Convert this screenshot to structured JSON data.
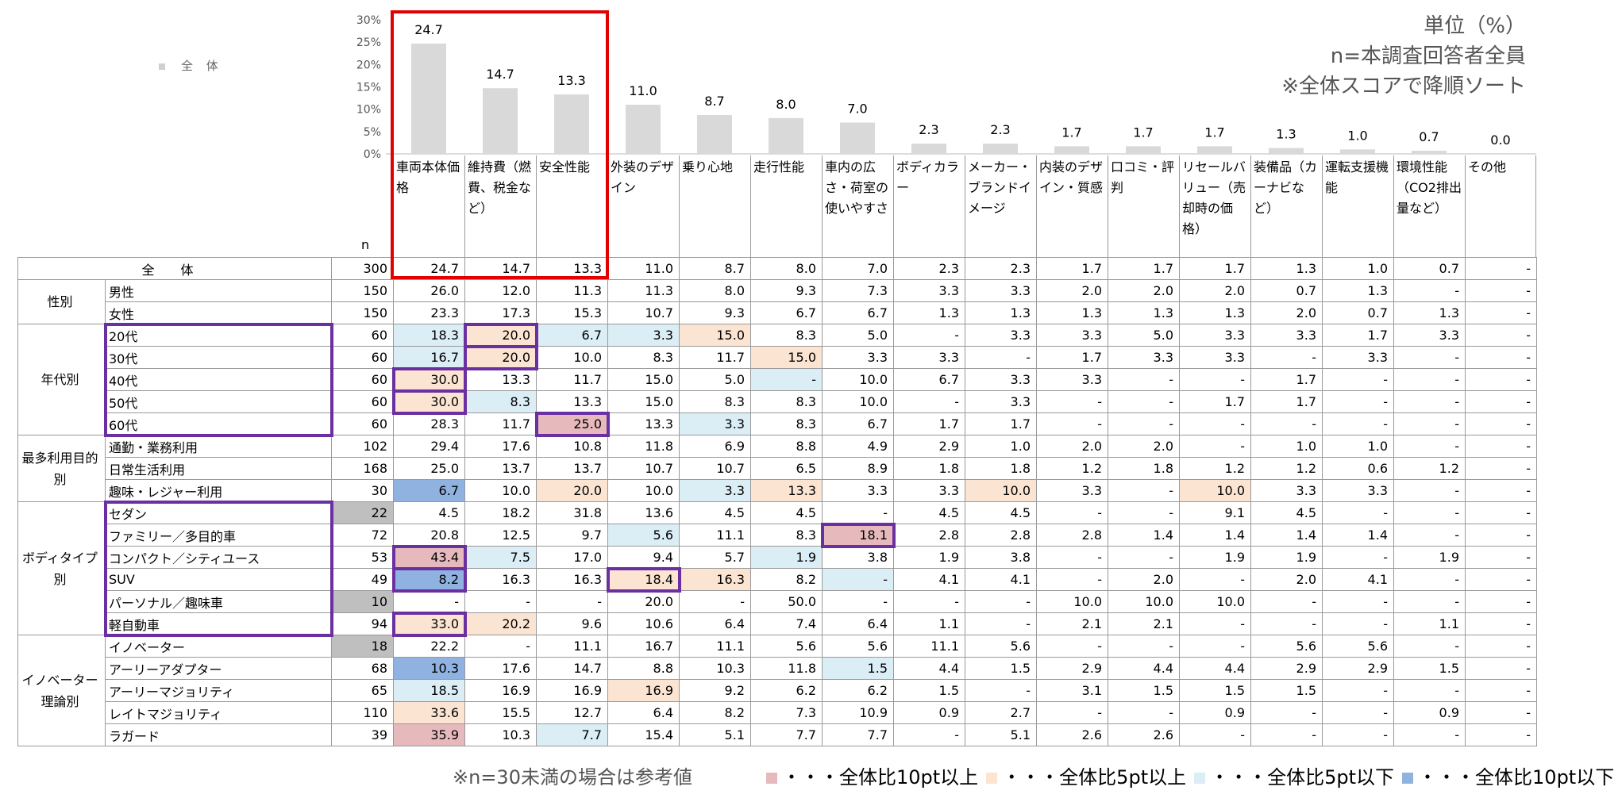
{
  "notes": {
    "unit": "単位（%）",
    "base": "n=本調査回答者全員",
    "sort": "※全体スコアで降順ソート"
  },
  "legend_all": "全 体",
  "n_header": "n",
  "total_label": "全 体",
  "footnote": "※n=30未満の場合は参考値",
  "legend": [
    {
      "label": "・・・全体比10pt以上",
      "color": "#e6b9bd"
    },
    {
      "label": "・・・全体比5pt以上",
      "color": "#fbe4d2"
    },
    {
      "label": "・・・全体比5pt以下",
      "color": "#dbedf5"
    },
    {
      "label": "・・・全体比10pt以下",
      "color": "#8fb2e0"
    }
  ],
  "chart_data": {
    "type": "bar",
    "categories": [
      "車両本体価格",
      "維持費（燃費、税金など）",
      "安全性能",
      "外装のデザイン",
      "乗り心地",
      "走行性能",
      "車内の広さ・荷室の使いやすさ",
      "ボディカラー",
      "メーカー・ブランドイメージ",
      "内装のデザイン・質感",
      "口コミ・評判",
      "リセールバリュー（売却時の価格）",
      "装備品（カーナビなど）",
      "運転支援機能",
      "環境性能（CO2排出量など）",
      "その他"
    ],
    "values": [
      24.7,
      14.7,
      13.3,
      11.0,
      8.7,
      8.0,
      7.0,
      2.3,
      2.3,
      1.7,
      1.7,
      1.7,
      1.3,
      1.0,
      0.7,
      0.0
    ],
    "value_labels": [
      "24.7",
      "14.7",
      "13.3",
      "11.0",
      "8.7",
      "8.0",
      "7.0",
      "2.3",
      "2.3",
      "1.7",
      "1.7",
      "1.7",
      "1.3",
      "1.0",
      "0.7",
      "0.0"
    ],
    "y_ticks": [
      "30%",
      "25%",
      "20%",
      "15%",
      "10%",
      "5%",
      "0%"
    ],
    "ylim": [
      0,
      30
    ],
    "color": "#d9d9d9"
  },
  "table": {
    "total": {
      "n": "300",
      "values": [
        "24.7",
        "14.7",
        "13.3",
        "11.0",
        "8.7",
        "8.0",
        "7.0",
        "2.3",
        "2.3",
        "1.7",
        "1.7",
        "1.7",
        "1.3",
        "1.0",
        "0.7",
        "-"
      ]
    },
    "groups": [
      {
        "label": "性別",
        "rows": [
          {
            "seg": "男性",
            "n": "150",
            "values": [
              "26.0",
              "12.0",
              "11.3",
              "11.3",
              "8.0",
              "9.3",
              "7.3",
              "3.3",
              "3.3",
              "2.0",
              "2.0",
              "2.0",
              "0.7",
              "1.3",
              "-",
              "-"
            ],
            "hl": [
              "",
              "",
              "",
              "",
              "",
              "",
              "",
              "",
              "",
              "",
              "",
              "",
              "",
              "",
              "",
              ""
            ]
          },
          {
            "seg": "女性",
            "n": "150",
            "values": [
              "23.3",
              "17.3",
              "15.3",
              "10.7",
              "9.3",
              "6.7",
              "6.7",
              "1.3",
              "1.3",
              "1.3",
              "1.3",
              "1.3",
              "2.0",
              "0.7",
              "1.3",
              "-"
            ],
            "hl": [
              "",
              "",
              "",
              "",
              "",
              "",
              "",
              "",
              "",
              "",
              "",
              "",
              "",
              "",
              "",
              ""
            ]
          }
        ]
      },
      {
        "label": "年代別",
        "rows": [
          {
            "seg": "20代",
            "n": "60",
            "values": [
              "18.3",
              "20.0",
              "6.7",
              "3.3",
              "15.0",
              "8.3",
              "5.0",
              "-",
              "3.3",
              "3.3",
              "5.0",
              "3.3",
              "3.3",
              "1.7",
              "3.3",
              "-"
            ],
            "hl": [
              "l5",
              "h5",
              "l5",
              "l5",
              "h5",
              "",
              "",
              "",
              "",
              "",
              "",
              "",
              "",
              "",
              "",
              ""
            ]
          },
          {
            "seg": "30代",
            "n": "60",
            "values": [
              "16.7",
              "20.0",
              "10.0",
              "8.3",
              "11.7",
              "15.0",
              "3.3",
              "3.3",
              "-",
              "1.7",
              "3.3",
              "3.3",
              "-",
              "3.3",
              "-",
              "-"
            ],
            "hl": [
              "l5",
              "h5",
              "",
              "",
              "",
              "h5",
              "",
              "",
              "",
              "",
              "",
              "",
              "",
              "",
              "",
              ""
            ]
          },
          {
            "seg": "40代",
            "n": "60",
            "values": [
              "30.0",
              "13.3",
              "11.7",
              "15.0",
              "5.0",
              "-",
              "10.0",
              "6.7",
              "3.3",
              "3.3",
              "-",
              "-",
              "1.7",
              "-",
              "-",
              "-"
            ],
            "hl": [
              "h5",
              "",
              "",
              "",
              "",
              "l5",
              "",
              "",
              "",
              "",
              "",
              "",
              "",
              "",
              "",
              ""
            ]
          },
          {
            "seg": "50代",
            "n": "60",
            "values": [
              "30.0",
              "8.3",
              "13.3",
              "15.0",
              "8.3",
              "8.3",
              "10.0",
              "-",
              "3.3",
              "-",
              "-",
              "1.7",
              "1.7",
              "-",
              "-",
              "-"
            ],
            "hl": [
              "h5",
              "l5",
              "",
              "",
              "",
              "",
              "",
              "",
              "",
              "",
              "",
              "",
              "",
              "",
              "",
              ""
            ]
          },
          {
            "seg": "60代",
            "n": "60",
            "values": [
              "28.3",
              "11.7",
              "25.0",
              "13.3",
              "3.3",
              "8.3",
              "6.7",
              "1.7",
              "1.7",
              "-",
              "-",
              "-",
              "-",
              "-",
              "-",
              "-"
            ],
            "hl": [
              "",
              "",
              "h10",
              "",
              "l5",
              "",
              "",
              "",
              "",
              "",
              "",
              "",
              "",
              "",
              "",
              ""
            ]
          }
        ]
      },
      {
        "label": "最多利用目的別",
        "rows": [
          {
            "seg": "通勤・業務利用",
            "n": "102",
            "values": [
              "29.4",
              "17.6",
              "10.8",
              "11.8",
              "6.9",
              "8.8",
              "4.9",
              "2.9",
              "1.0",
              "2.0",
              "2.0",
              "-",
              "1.0",
              "1.0",
              "-",
              "-"
            ],
            "hl": [
              "",
              "",
              "",
              "",
              "",
              "",
              "",
              "",
              "",
              "",
              "",
              "",
              "",
              "",
              "",
              ""
            ]
          },
          {
            "seg": "日常生活利用",
            "n": "168",
            "values": [
              "25.0",
              "13.7",
              "13.7",
              "10.7",
              "10.7",
              "6.5",
              "8.9",
              "1.8",
              "1.8",
              "1.2",
              "1.8",
              "1.2",
              "1.2",
              "0.6",
              "1.2",
              "-"
            ],
            "hl": [
              "",
              "",
              "",
              "",
              "",
              "",
              "",
              "",
              "",
              "",
              "",
              "",
              "",
              "",
              "",
              ""
            ]
          },
          {
            "seg": "趣味・レジャー利用",
            "n": "30",
            "values": [
              "6.7",
              "10.0",
              "20.0",
              "10.0",
              "3.3",
              "13.3",
              "3.3",
              "3.3",
              "10.0",
              "3.3",
              "-",
              "10.0",
              "3.3",
              "3.3",
              "-",
              "-"
            ],
            "hl": [
              "l10",
              "",
              "h5",
              "",
              "l5",
              "h5",
              "",
              "",
              "h5",
              "",
              "",
              "h5",
              "",
              "",
              "",
              ""
            ]
          }
        ]
      },
      {
        "label": "ボディタイプ別",
        "rows": [
          {
            "seg": "セダン",
            "n": "22",
            "nGray": true,
            "values": [
              "4.5",
              "18.2",
              "31.8",
              "13.6",
              "4.5",
              "4.5",
              "-",
              "4.5",
              "4.5",
              "-",
              "-",
              "9.1",
              "4.5",
              "-",
              "-",
              "-"
            ],
            "hl": [
              "",
              "",
              "",
              "",
              "",
              "",
              "",
              "",
              "",
              "",
              "",
              "",
              "",
              "",
              "",
              ""
            ]
          },
          {
            "seg": "ファミリー／多目的車",
            "n": "72",
            "values": [
              "20.8",
              "12.5",
              "9.7",
              "5.6",
              "11.1",
              "8.3",
              "18.1",
              "2.8",
              "2.8",
              "2.8",
              "1.4",
              "1.4",
              "1.4",
              "1.4",
              "-",
              "-"
            ],
            "hl": [
              "",
              "",
              "",
              "l5",
              "",
              "",
              "h10",
              "",
              "",
              "",
              "",
              "",
              "",
              "",
              "",
              ""
            ]
          },
          {
            "seg": "コンパクト／シティユース",
            "n": "53",
            "values": [
              "43.4",
              "7.5",
              "17.0",
              "9.4",
              "5.7",
              "1.9",
              "3.8",
              "1.9",
              "3.8",
              "-",
              "-",
              "1.9",
              "1.9",
              "-",
              "1.9",
              "-"
            ],
            "hl": [
              "h10",
              "l5",
              "",
              "",
              "",
              "l5",
              "",
              "",
              "",
              "",
              "",
              "",
              "",
              "",
              "",
              ""
            ]
          },
          {
            "seg": "SUV",
            "n": "49",
            "values": [
              "8.2",
              "16.3",
              "16.3",
              "18.4",
              "16.3",
              "8.2",
              "-",
              "4.1",
              "4.1",
              "-",
              "2.0",
              "-",
              "2.0",
              "4.1",
              "-",
              "-"
            ],
            "hl": [
              "l10",
              "",
              "",
              "h5",
              "h5",
              "",
              "l5",
              "",
              "",
              "",
              "",
              "",
              "",
              "",
              "",
              ""
            ]
          },
          {
            "seg": "パーソナル／趣味車",
            "n": "10",
            "nGray": true,
            "values": [
              "-",
              "-",
              "-",
              "20.0",
              "-",
              "50.0",
              "-",
              "-",
              "-",
              "10.0",
              "10.0",
              "10.0",
              "-",
              "-",
              "-",
              "-"
            ],
            "hl": [
              "",
              "",
              "",
              "",
              "",
              "",
              "",
              "",
              "",
              "",
              "",
              "",
              "",
              "",
              "",
              ""
            ]
          },
          {
            "seg": "軽自動車",
            "n": "94",
            "values": [
              "33.0",
              "20.2",
              "9.6",
              "10.6",
              "6.4",
              "7.4",
              "6.4",
              "1.1",
              "-",
              "2.1",
              "2.1",
              "-",
              "-",
              "-",
              "1.1",
              "-"
            ],
            "hl": [
              "h5",
              "h5",
              "",
              "",
              "",
              "",
              "",
              "",
              "",
              "",
              "",
              "",
              "",
              "",
              "",
              ""
            ]
          }
        ]
      },
      {
        "label": "イノベーター理論別",
        "rows": [
          {
            "seg": "イノベーター",
            "n": "18",
            "nGray": true,
            "values": [
              "22.2",
              "-",
              "11.1",
              "16.7",
              "11.1",
              "5.6",
              "5.6",
              "11.1",
              "5.6",
              "-",
              "-",
              "-",
              "5.6",
              "5.6",
              "-",
              "-"
            ],
            "hl": [
              "",
              "",
              "",
              "",
              "",
              "",
              "",
              "",
              "",
              "",
              "",
              "",
              "",
              "",
              "",
              ""
            ]
          },
          {
            "seg": "アーリーアダプター",
            "n": "68",
            "values": [
              "10.3",
              "17.6",
              "14.7",
              "8.8",
              "10.3",
              "11.8",
              "1.5",
              "4.4",
              "1.5",
              "2.9",
              "4.4",
              "4.4",
              "2.9",
              "2.9",
              "1.5",
              "-"
            ],
            "hl": [
              "l10",
              "",
              "",
              "",
              "",
              "",
              "l5",
              "",
              "",
              "",
              "",
              "",
              "",
              "",
              "",
              ""
            ]
          },
          {
            "seg": "アーリーマジョリティ",
            "n": "65",
            "values": [
              "18.5",
              "16.9",
              "16.9",
              "16.9",
              "9.2",
              "6.2",
              "6.2",
              "1.5",
              "-",
              "3.1",
              "1.5",
              "1.5",
              "1.5",
              "-",
              "-",
              "-"
            ],
            "hl": [
              "l5",
              "",
              "",
              "h5",
              "",
              "",
              "",
              "",
              "",
              "",
              "",
              "",
              "",
              "",
              "",
              ""
            ]
          },
          {
            "seg": "レイトマジョリティ",
            "n": "110",
            "values": [
              "33.6",
              "15.5",
              "12.7",
              "6.4",
              "8.2",
              "7.3",
              "10.9",
              "0.9",
              "2.7",
              "-",
              "-",
              "0.9",
              "-",
              "-",
              "0.9",
              "-"
            ],
            "hl": [
              "h5",
              "",
              "",
              "",
              "",
              "",
              "",
              "",
              "",
              "",
              "",
              "",
              "",
              "",
              "",
              ""
            ]
          },
          {
            "seg": "ラガード",
            "n": "39",
            "values": [
              "35.9",
              "10.3",
              "7.7",
              "15.4",
              "5.1",
              "7.7",
              "7.7",
              "-",
              "5.1",
              "2.6",
              "2.6",
              "-",
              "-",
              "-",
              "-",
              "-"
            ],
            "hl": [
              "h10",
              "",
              "l5",
              "",
              "",
              "",
              "",
              "",
              "",
              "",
              "",
              "",
              "",
              "",
              "",
              ""
            ]
          }
        ]
      }
    ]
  }
}
